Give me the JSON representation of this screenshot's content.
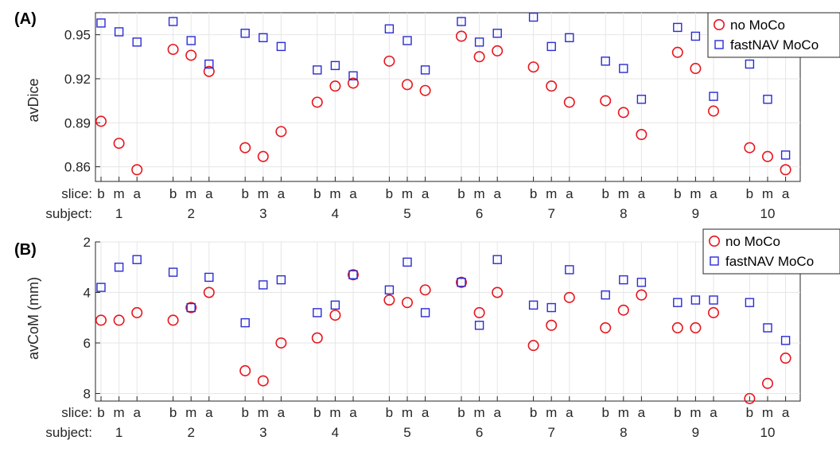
{
  "chart_data": [
    {
      "panel": "(A)",
      "type": "scatter",
      "ylabel": "avDice",
      "ylim": [
        0.85,
        0.965
      ],
      "yticks": [
        0.86,
        0.89,
        0.92,
        0.95
      ],
      "ytick_labels": [
        "0.86",
        "0.89",
        "0.92",
        "0.95"
      ],
      "y_reversed": false,
      "grid": true,
      "legend_position": "top-right",
      "row_labels": [
        "slice:",
        "subject:"
      ],
      "subjects": [
        "1",
        "2",
        "3",
        "4",
        "5",
        "6",
        "7",
        "8",
        "9",
        "10"
      ],
      "slices": [
        "b",
        "m",
        "a"
      ],
      "series": [
        {
          "name": "no MoCo",
          "marker": "circle",
          "color": "#e8141c",
          "values": [
            0.891,
            0.876,
            0.858,
            0.94,
            0.936,
            0.925,
            0.873,
            0.867,
            0.884,
            0.904,
            0.915,
            0.917,
            0.932,
            0.916,
            0.912,
            0.949,
            0.935,
            0.939,
            0.928,
            0.915,
            0.904,
            0.905,
            0.897,
            0.882,
            0.938,
            0.927,
            0.898,
            0.873,
            0.867,
            0.858
          ]
        },
        {
          "name": "fastNAV MoCo",
          "marker": "square",
          "color": "#2b2bd6",
          "values": [
            0.958,
            0.952,
            0.945,
            0.959,
            0.946,
            0.93,
            0.951,
            0.948,
            0.942,
            0.926,
            0.929,
            0.922,
            0.954,
            0.946,
            0.926,
            0.959,
            0.945,
            0.951,
            0.962,
            0.942,
            0.948,
            0.932,
            0.927,
            0.906,
            0.955,
            0.949,
            0.908,
            0.93,
            0.906,
            0.868
          ]
        }
      ]
    },
    {
      "panel": "(B)",
      "type": "scatter",
      "ylabel": "avCoM (mm)",
      "ylim": [
        2,
        8.3
      ],
      "yticks": [
        2,
        4,
        6,
        8
      ],
      "ytick_labels": [
        "2",
        "4",
        "6",
        "8"
      ],
      "y_reversed": true,
      "grid": true,
      "legend_position": "top-right",
      "row_labels": [
        "slice:",
        "subject:"
      ],
      "subjects": [
        "1",
        "2",
        "3",
        "4",
        "5",
        "6",
        "7",
        "8",
        "9",
        "10"
      ],
      "slices": [
        "b",
        "m",
        "a"
      ],
      "series": [
        {
          "name": "no MoCo",
          "marker": "circle",
          "color": "#e8141c",
          "values": [
            5.1,
            5.1,
            4.8,
            5.1,
            4.6,
            4.0,
            7.1,
            7.5,
            6.0,
            5.8,
            4.9,
            3.3,
            4.3,
            4.4,
            3.9,
            3.6,
            4.8,
            4.0,
            6.1,
            5.3,
            4.2,
            5.4,
            4.7,
            4.1,
            5.4,
            5.4,
            4.8,
            8.2,
            7.6,
            6.6
          ]
        },
        {
          "name": "fastNAV MoCo",
          "marker": "square",
          "color": "#2b2bd6",
          "values": [
            3.8,
            3.0,
            2.7,
            3.2,
            4.6,
            3.4,
            5.2,
            3.7,
            3.5,
            4.8,
            4.5,
            3.3,
            3.9,
            2.8,
            4.8,
            3.6,
            5.3,
            2.7,
            4.5,
            4.6,
            3.1,
            4.1,
            3.5,
            3.6,
            4.4,
            4.3,
            4.3,
            4.4,
            5.4,
            5.9
          ]
        }
      ]
    }
  ]
}
